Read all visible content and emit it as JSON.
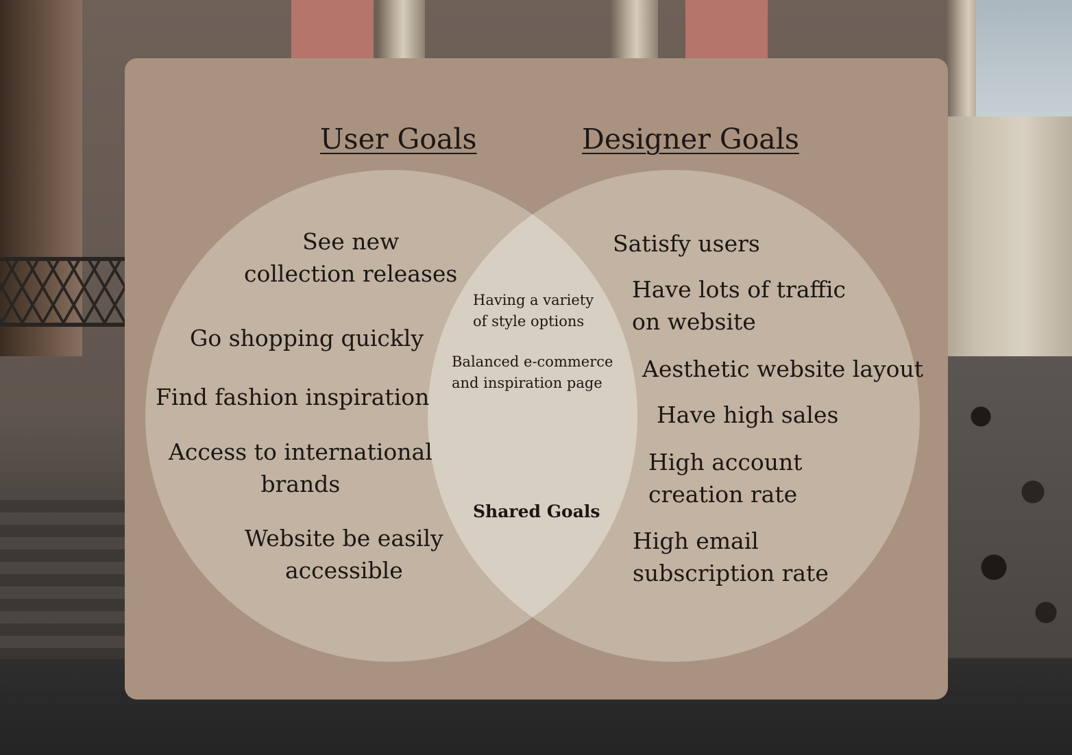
{
  "diagram": {
    "type": "venn",
    "colors": {
      "panel": "#a99280",
      "circle": "#c2b3a2",
      "overlap": "#d8cfc3",
      "text": "#1c1714"
    },
    "left": {
      "title": "User Goals",
      "items": [
        "See new\ncollection releases",
        "Go shopping quickly",
        "Find fashion inspiration",
        "Access to international\nbrands",
        "Website be easily\naccessible"
      ]
    },
    "right": {
      "title": "Designer Goals",
      "items": [
        "Satisfy users",
        "Have lots of traffic\non website",
        "Aesthetic website layout",
        "Have high sales",
        "High account\ncreation rate",
        "High email\nsubscription rate"
      ]
    },
    "shared": {
      "label": "Shared Goals",
      "items": [
        "Having a variety\nof style options",
        "Balanced e-commerce\nand inspiration page"
      ]
    }
  }
}
